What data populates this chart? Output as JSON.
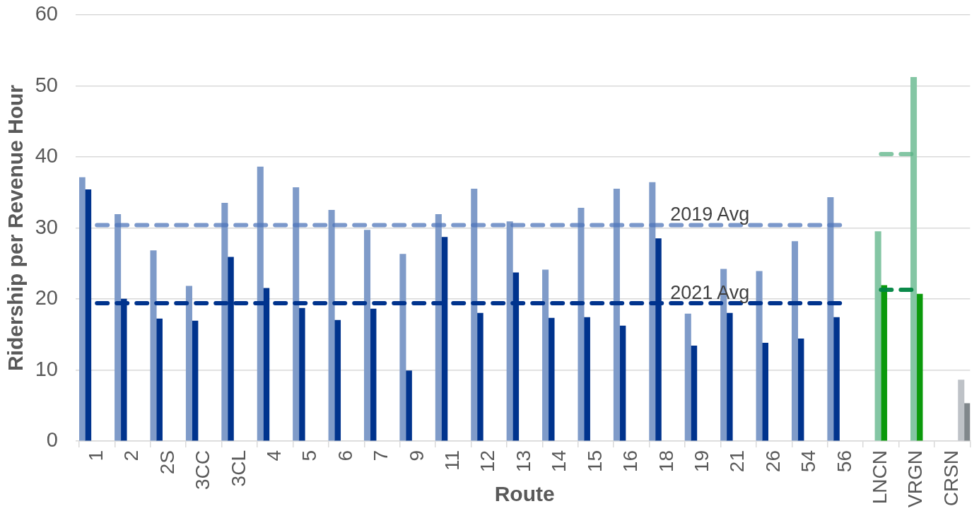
{
  "chart_data": {
    "type": "bar",
    "xlabel": "Route",
    "ylabel": "Ridership per Revenue Hour",
    "categories": [
      "1",
      "2",
      "2S",
      "3CC",
      "3CL",
      "4",
      "5",
      "6",
      "7",
      "9",
      "11",
      "12",
      "13",
      "14",
      "15",
      "16",
      "18",
      "19",
      "21",
      "26",
      "54",
      "56",
      "LNCN",
      "VRGN",
      "CRSN"
    ],
    "series": [
      {
        "color": "#7f9bc9",
        "values": [
          37.1,
          31.9,
          26.8,
          21.8,
          33.5,
          38.6,
          35.7,
          32.5,
          29.7,
          26.3,
          31.9,
          35.5,
          30.9,
          24.1,
          32.8,
          35.5,
          36.4,
          17.9,
          24.2,
          23.9,
          28.1,
          34.3,
          null,
          null,
          null
        ]
      },
      {
        "color": "#00338d",
        "values": [
          35.4,
          20.0,
          17.2,
          16.9,
          25.9,
          21.5,
          18.7,
          17.0,
          18.6,
          9.9,
          28.7,
          18.0,
          23.7,
          17.3,
          17.4,
          16.2,
          28.5,
          13.4,
          18.0,
          13.8,
          14.4,
          17.4,
          null,
          null,
          null
        ]
      },
      {
        "color": "#84c6a4",
        "values": [
          null,
          null,
          null,
          null,
          null,
          null,
          null,
          null,
          null,
          null,
          null,
          null,
          null,
          null,
          null,
          null,
          null,
          null,
          null,
          null,
          null,
          null,
          29.5,
          51.2,
          null
        ]
      },
      {
        "color": "#0b9a0b",
        "values": [
          null,
          null,
          null,
          null,
          null,
          null,
          null,
          null,
          null,
          null,
          null,
          null,
          null,
          null,
          null,
          null,
          null,
          null,
          null,
          null,
          null,
          null,
          21.9,
          20.7,
          null
        ]
      },
      {
        "color": "#bec2c7",
        "values": [
          null,
          null,
          null,
          null,
          null,
          null,
          null,
          null,
          null,
          null,
          null,
          null,
          null,
          null,
          null,
          null,
          null,
          null,
          null,
          null,
          null,
          null,
          null,
          null,
          8.6
        ]
      },
      {
        "color": "#80878b",
        "values": [
          null,
          null,
          null,
          null,
          null,
          null,
          null,
          null,
          null,
          null,
          null,
          null,
          null,
          null,
          null,
          null,
          null,
          null,
          null,
          null,
          null,
          null,
          null,
          null,
          5.3
        ]
      },
      {
        "type": "line",
        "name": "2019 Avg",
        "color": "#7b98cb",
        "values": [
          30.4,
          30.4,
          30.4,
          30.4,
          30.4,
          30.4,
          30.4,
          30.4,
          30.4,
          30.4,
          30.4,
          30.4,
          30.4,
          30.4,
          30.4,
          30.4,
          30.4,
          30.4,
          30.4,
          30.4,
          30.4,
          30.4,
          null,
          null,
          null
        ]
      },
      {
        "type": "line",
        "name": "2021 Avg",
        "color": "#00338d",
        "values": [
          19.4,
          19.4,
          19.4,
          19.4,
          19.4,
          19.4,
          19.4,
          19.4,
          19.4,
          19.4,
          19.4,
          19.4,
          19.4,
          19.4,
          19.4,
          19.4,
          19.4,
          19.4,
          19.4,
          19.4,
          19.4,
          19.4,
          null,
          null,
          null
        ]
      },
      {
        "type": "line",
        "color": "#84c6a4",
        "values": [
          null,
          null,
          null,
          null,
          null,
          null,
          null,
          null,
          null,
          null,
          null,
          null,
          null,
          null,
          null,
          null,
          null,
          null,
          null,
          null,
          null,
          null,
          40.4,
          40.4,
          null
        ]
      },
      {
        "type": "line",
        "color": "#0b8a4a",
        "values": [
          null,
          null,
          null,
          null,
          null,
          null,
          null,
          null,
          null,
          null,
          null,
          null,
          null,
          null,
          null,
          null,
          null,
          null,
          null,
          null,
          null,
          null,
          21.3,
          21.3,
          null
        ]
      }
    ],
    "ylim": [
      0,
      60
    ],
    "yticks": [
      0,
      10,
      20,
      30,
      40,
      50,
      60
    ],
    "grid": "y",
    "line_style": "dashed"
  }
}
